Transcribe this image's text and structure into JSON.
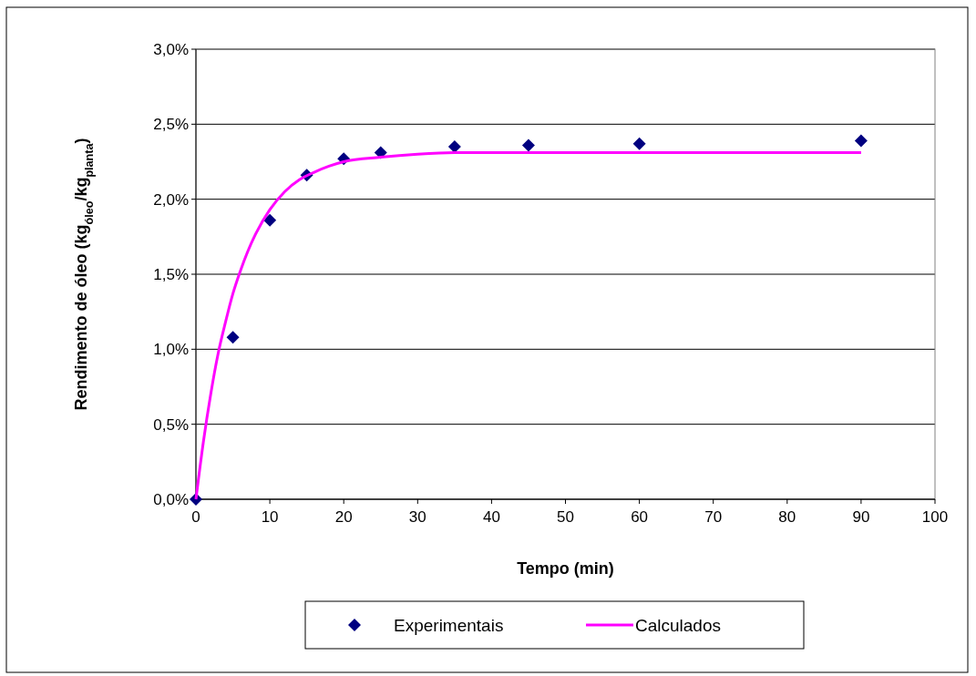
{
  "chart_data": {
    "type": "scatter",
    "xlabel": "Tempo (min)",
    "ylabel": "Rendimento de óleo (kg$_{óleo}$/kg$_{planta}$)",
    "xlim": [
      0,
      100
    ],
    "xticks": [
      0,
      10,
      20,
      30,
      40,
      50,
      60,
      70,
      80,
      90,
      100
    ],
    "ylim": [
      0,
      3
    ],
    "yticks": [
      {
        "value": 0,
        "label": "0,0%"
      },
      {
        "value": 0.5,
        "label": "0,5%"
      },
      {
        "value": 1,
        "label": "1,0%"
      },
      {
        "value": 1.5,
        "label": "1,5%"
      },
      {
        "value": 2,
        "label": "2,0%"
      },
      {
        "value": 2.5,
        "label": "2,5%"
      },
      {
        "value": 3,
        "label": "3,0%"
      }
    ],
    "grid": "y",
    "legend": "bottom",
    "series": [
      {
        "name": "Experimentais",
        "marker": "diamond",
        "color": "#000080",
        "x": [
          0,
          5,
          10,
          15,
          20,
          25,
          35,
          45,
          60,
          90
        ],
        "values": [
          0,
          1.08,
          1.86,
          2.16,
          2.27,
          2.31,
          2.35,
          2.36,
          2.37,
          2.39
        ]
      },
      {
        "name": "Calculados",
        "type": "line",
        "marker": "none",
        "color": "#ff00ff",
        "x": [
          0,
          1,
          2,
          3,
          4,
          5,
          6,
          7,
          8,
          10,
          12,
          14,
          16,
          18,
          20,
          25,
          30,
          35,
          40,
          90
        ],
        "values": [
          0,
          0.38,
          0.7,
          0.97,
          1.18,
          1.37,
          1.52,
          1.65,
          1.76,
          1.93,
          2.05,
          2.13,
          2.18,
          2.22,
          2.25,
          2.28,
          2.3,
          2.31,
          2.31,
          2.31
        ]
      }
    ]
  }
}
